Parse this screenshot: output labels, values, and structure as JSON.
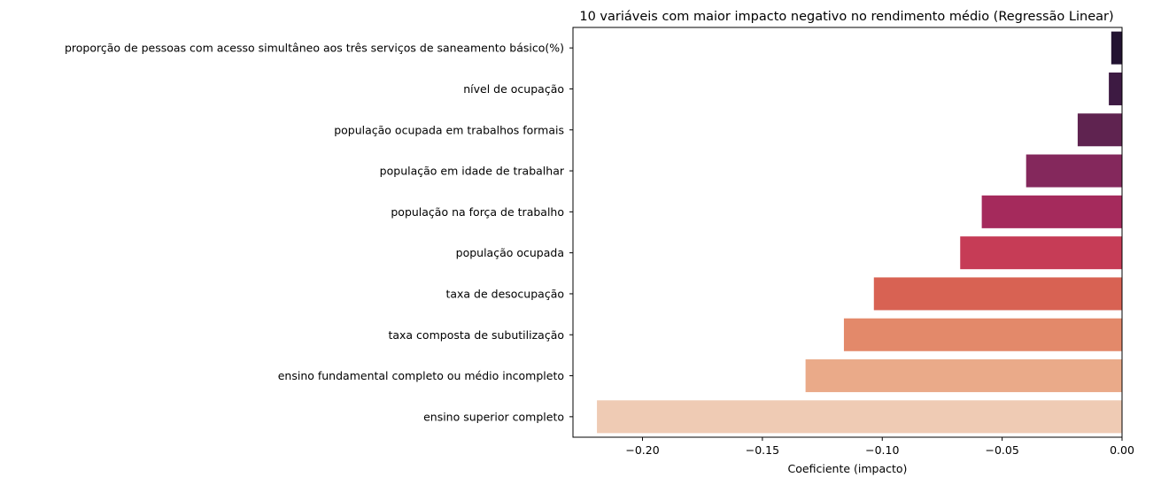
{
  "chart_data": {
    "type": "bar",
    "orientation": "horizontal",
    "title": "10 variáveis com maior impacto negativo no rendimento médio (Regressão Linear)",
    "xlabel": "Coeficiente (impacto)",
    "ylabel": "",
    "xlim": [
      -0.229,
      0.0
    ],
    "xticks": [
      -0.2,
      -0.15,
      -0.1,
      -0.05,
      0.0
    ],
    "xtick_labels": [
      "−0.20",
      "−0.15",
      "−0.10",
      "−0.05",
      "0.00"
    ],
    "grid": false,
    "legend": "none",
    "categories": [
      "proporção de pessoas com acesso simultâneo aos três serviços de saneamento básico(%)",
      "nível de ocupação",
      "população ocupada em trabalhos formais",
      "população em idade de trabalhar",
      "população na força de trabalho",
      "população ocupada",
      "taxa de desocupação",
      "taxa composta de subutilização",
      "ensino fundamental completo ou médio incompleto",
      "ensino superior completo"
    ],
    "values": [
      -0.0045,
      -0.0055,
      -0.0185,
      -0.04,
      -0.0585,
      -0.0675,
      -0.1035,
      -0.116,
      -0.132,
      -0.219
    ],
    "colors": [
      "#221331",
      "#3d1a42",
      "#5f2350",
      "#84285c",
      "#a52a5c",
      "#c63c56",
      "#d86253",
      "#e3896a",
      "#eaaa89",
      "#efcbb4"
    ]
  }
}
